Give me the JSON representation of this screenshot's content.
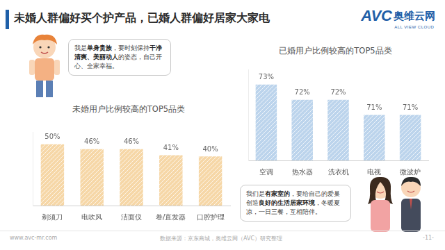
{
  "title": "未婚人群偏好买个护产品，已婚人群偏好居家大家电",
  "logo": {
    "brand": "AVC",
    "name": "奥维云网",
    "subtitle": "ALL VIEW CLOUD"
  },
  "bubbles": [
    [
      {
        "text": "我是"
      },
      {
        "text": "单身贵族",
        "bold": true
      },
      {
        "text": "，要时刻保持"
      },
      {
        "text": "干净清爽、美丽动人",
        "bold": true
      },
      {
        "text": "的姿态，自己开心、全家幸福。"
      }
    ],
    [
      {
        "text": "我们是"
      },
      {
        "text": "有家室的",
        "bold": true
      },
      {
        "text": "，要给自己的爱巢创造"
      },
      {
        "text": "良好的生活居家环境",
        "bold": true
      },
      {
        "text": "，冬暖夏凉，一日三餐，互相陪伴。"
      }
    ]
  ],
  "footer": {
    "website": "www.avc-mr.com",
    "source": "数据来源：京东商城，奥维云网（AVC）研究整理",
    "page": "-11-"
  },
  "chart_data": [
    {
      "type": "bar",
      "title": "未婚用户比例较高的TOP5品类",
      "categories": [
        "剃须刀",
        "电吹风",
        "洁面仪",
        "卷/直发器",
        "口腔护理"
      ],
      "values": [
        50,
        46,
        46,
        41,
        40
      ],
      "value_labels": [
        "50%",
        "46%",
        "46%",
        "41%",
        "40%"
      ],
      "color": "#f6d7a7",
      "ylim": [
        0,
        60
      ],
      "yticks": [
        0,
        60
      ],
      "grid": false,
      "data_labels": true,
      "tick_labels": "x"
    },
    {
      "type": "bar",
      "title": "已婚用户比例较高的TOP5品类",
      "categories": [
        "空调",
        "热水器",
        "洗衣机",
        "电视",
        "微波炉"
      ],
      "values": [
        73,
        72,
        72,
        71,
        71
      ],
      "value_labels": [
        "73%",
        "72%",
        "72%",
        "71%",
        "71%"
      ],
      "color": "#bcd4ec",
      "ylim": [
        68,
        74
      ],
      "yticks": [
        68,
        74
      ],
      "grid": false,
      "data_labels": true,
      "tick_labels": "x"
    }
  ]
}
